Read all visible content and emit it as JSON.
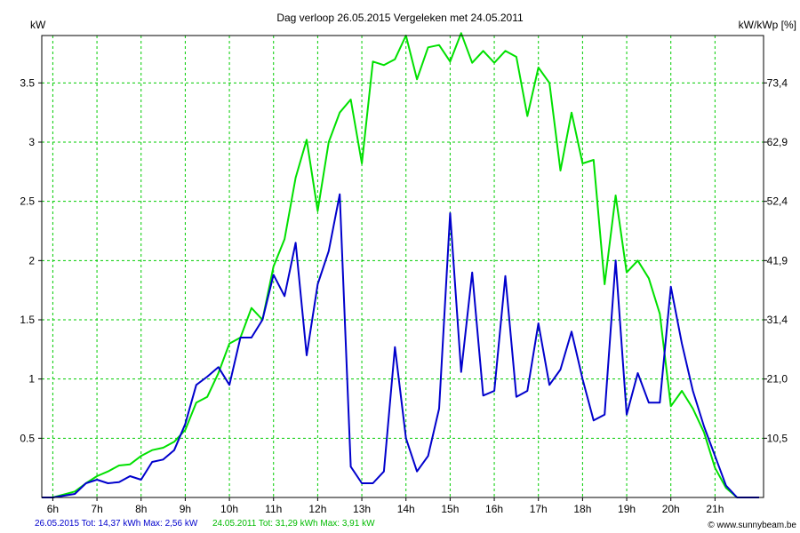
{
  "chart_data": {
    "type": "line",
    "title": "Dag  verloop 26.05.2015   Vergeleken met 24.05.2011",
    "ylabel_left": "kW",
    "ylabel_right": "kW/kWp [%]",
    "xlim": [
      5.75,
      22.1
    ],
    "ylim": [
      0,
      3.9
    ],
    "x_ticks": [
      6,
      7,
      8,
      9,
      10,
      11,
      12,
      13,
      14,
      15,
      16,
      17,
      18,
      19,
      20,
      21
    ],
    "x_tick_labels": [
      "6h",
      "7h",
      "8h",
      "9h",
      "10h",
      "11h",
      "12h",
      "13h",
      "14h",
      "15h",
      "16h",
      "17h",
      "18h",
      "19h",
      "20h",
      "21h"
    ],
    "y_ticks": [
      0.5,
      1,
      1.5,
      2,
      2.5,
      3,
      3.5
    ],
    "y_tick_labels": [
      "0.5",
      "1",
      "1.5",
      "2",
      "2.5",
      "3",
      "3.5"
    ],
    "y2_tick_labels": [
      "10,5",
      "21,0",
      "31,4",
      "41,9",
      "52,4",
      "62,9",
      "73,4"
    ],
    "grid": true,
    "series": [
      {
        "color": "#00e000",
        "x": [
          5.75,
          6.0,
          6.5,
          6.75,
          7.0,
          7.25,
          7.5,
          7.75,
          8.0,
          8.25,
          8.5,
          8.75,
          9.0,
          9.25,
          9.5,
          9.75,
          10.0,
          10.25,
          10.5,
          10.75,
          11.0,
          11.25,
          11.5,
          11.75,
          12.0,
          12.25,
          12.5,
          12.75,
          13.0,
          13.25,
          13.5,
          13.75,
          14.0,
          14.25,
          14.5,
          14.75,
          15.0,
          15.25,
          15.5,
          15.75,
          16.0,
          16.25,
          16.5,
          16.75,
          17.0,
          17.25,
          17.5,
          17.75,
          18.0,
          18.25,
          18.5,
          18.75,
          19.0,
          19.25,
          19.5,
          19.75,
          20.0,
          20.25,
          20.5,
          20.75,
          21.0,
          21.25,
          21.5,
          21.75,
          22.0
        ],
        "y": [
          0,
          0,
          0.05,
          0.12,
          0.18,
          0.22,
          0.27,
          0.28,
          0.35,
          0.4,
          0.42,
          0.47,
          0.57,
          0.8,
          0.85,
          1.05,
          1.3,
          1.35,
          1.6,
          1.5,
          1.95,
          2.18,
          2.7,
          3.02,
          2.42,
          3.0,
          3.25,
          3.36,
          2.82,
          3.68,
          3.65,
          3.7,
          3.9,
          3.53,
          3.8,
          3.82,
          3.68,
          3.92,
          3.67,
          3.77,
          3.67,
          3.77,
          3.72,
          3.22,
          3.63,
          3.5,
          2.76,
          3.25,
          2.82,
          2.85,
          1.8,
          2.55,
          1.9,
          2.0,
          1.85,
          1.55,
          0.77,
          0.9,
          0.75,
          0.55,
          0.25,
          0.08,
          0,
          0,
          0
        ]
      },
      {
        "color": "#0000cc",
        "x": [
          5.75,
          6.0,
          6.5,
          6.75,
          7.0,
          7.25,
          7.5,
          7.75,
          8.0,
          8.25,
          8.5,
          8.75,
          9.0,
          9.25,
          9.5,
          9.75,
          10.0,
          10.25,
          10.5,
          10.75,
          11.0,
          11.25,
          11.5,
          11.75,
          12.0,
          12.25,
          12.5,
          12.75,
          13.0,
          13.25,
          13.5,
          13.75,
          14.0,
          14.25,
          14.5,
          14.75,
          15.0,
          15.25,
          15.5,
          15.75,
          16.0,
          16.25,
          16.5,
          16.75,
          17.0,
          17.25,
          17.5,
          17.75,
          18.0,
          18.25,
          18.5,
          18.75,
          19.0,
          19.25,
          19.5,
          19.75,
          20.0,
          20.25,
          20.5,
          20.75,
          21.0,
          21.25,
          21.5,
          21.75,
          22.0
        ],
        "y": [
          0,
          0,
          0.03,
          0.12,
          0.15,
          0.12,
          0.13,
          0.18,
          0.15,
          0.3,
          0.32,
          0.4,
          0.62,
          0.95,
          1.02,
          1.1,
          0.95,
          1.35,
          1.35,
          1.5,
          1.88,
          1.7,
          2.15,
          1.2,
          1.8,
          2.08,
          2.56,
          0.26,
          0.12,
          0.12,
          0.22,
          1.27,
          0.5,
          0.22,
          0.35,
          0.75,
          2.4,
          1.06,
          1.9,
          0.86,
          0.9,
          1.87,
          0.85,
          0.9,
          1.47,
          0.95,
          1.08,
          1.4,
          1.0,
          0.65,
          0.7,
          2.0,
          0.7,
          1.05,
          0.8,
          0.8,
          1.78,
          1.3,
          0.9,
          0.6,
          0.35,
          0.1,
          0,
          0,
          0
        ]
      }
    ]
  },
  "footer": {
    "series1_legend": "26.05.2015 Tot: 14,37 kWh Max: 2,56 kW",
    "series2_legend": "24.05.2011 Tot: 31,29 kWh Max: 3,91 kW",
    "credit": "© www.sunnybeam.be"
  },
  "colors": {
    "series1": "#0000cc",
    "series2": "#00e000",
    "grid": "#00cc00",
    "axis": "#000000"
  }
}
